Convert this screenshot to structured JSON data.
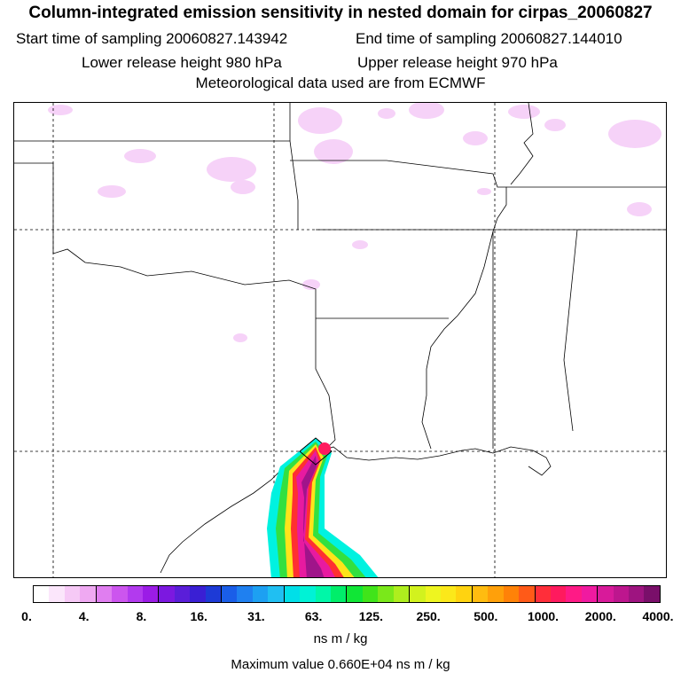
{
  "title": "Column-integrated emission sensitivity in nested domain for cirpas_20060827",
  "sampling": {
    "start": "Start time of sampling 20060827.143942",
    "end": "End time of sampling 20060827.144010"
  },
  "release": {
    "lower": "Lower release height  980 hPa",
    "upper": "Upper release height  970 hPa"
  },
  "meteo": "Meteorological data used are from ECMWF",
  "colorbar": {
    "ticks": [
      "0.",
      "4.",
      "8.",
      "16.",
      "31.",
      "63.",
      "125.",
      "250.",
      "500.",
      "1000.",
      "2000.",
      "4000."
    ],
    "colors": [
      "#ffffff",
      "#fbe6fb",
      "#f6c9f6",
      "#efa9f2",
      "#e07ef0",
      "#cc55ee",
      "#b23aee",
      "#9b1ce6",
      "#7c18e0",
      "#5a1ed9",
      "#3a1fd4",
      "#1d3ad6",
      "#1a5ee8",
      "#1f80f0",
      "#1da0f2",
      "#20bff2",
      "#00dfe8",
      "#00f2d6",
      "#00f7a8",
      "#00ee6a",
      "#10e636",
      "#40e41a",
      "#7ae81a",
      "#aeee1e",
      "#d2f21e",
      "#eef520",
      "#fbe81a",
      "#ffd310",
      "#ffbc10",
      "#ffa00a",
      "#ff8208",
      "#ff5a18",
      "#ff2e3a",
      "#ff1a5e",
      "#ff1a86",
      "#f01aa0",
      "#d81a9a",
      "#bd168e",
      "#9e1480",
      "#7a0f6a"
    ],
    "unit": "ns m / kg"
  },
  "max_value": "Maximum value  0.660E+04 ns m / kg"
}
